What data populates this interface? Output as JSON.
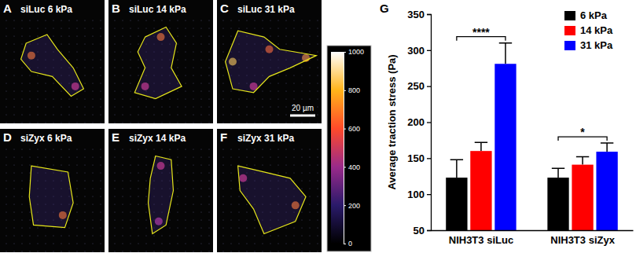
{
  "panels": [
    {
      "letter": "A",
      "title": "siLuc 6 kPa"
    },
    {
      "letter": "B",
      "title": "siLuc 14 kPa"
    },
    {
      "letter": "C",
      "title": "siLuc 31 kPa"
    },
    {
      "letter": "D",
      "title": "siZyx 6 kPa"
    },
    {
      "letter": "E",
      "title": "siZyx 14 kPa"
    },
    {
      "letter": "F",
      "title": "siZyx 31 kPa"
    }
  ],
  "scale_bar": "20 µm",
  "colorbar": {
    "range": [
      0,
      1000
    ],
    "ticks": [
      0,
      200,
      400,
      600,
      800,
      1000
    ]
  },
  "chart_data": {
    "type": "bar",
    "panel_letter": "G",
    "y_label": "Average traction stress (Pa)",
    "categories": [
      "NIH3T3 siLuc",
      "NIH3T3 siZyx"
    ],
    "series": [
      {
        "name": "6 kPa",
        "color": "#000000",
        "values": [
          123,
          123
        ],
        "errors": [
          25,
          13
        ]
      },
      {
        "name": "14 kPa",
        "color": "#ff0000",
        "values": [
          160,
          141
        ],
        "errors": [
          12,
          11
        ]
      },
      {
        "name": "31 kPa",
        "color": "#0000ff",
        "values": [
          281,
          159
        ],
        "errors": [
          29,
          12
        ]
      }
    ],
    "ylim": [
      50,
      350
    ],
    "yticks": [
      50,
      100,
      150,
      200,
      250,
      300,
      350
    ],
    "legend": "top-right",
    "annotations": [
      {
        "text": "****",
        "category": 0,
        "from_series": 0,
        "to_series": 2
      },
      {
        "text": "*",
        "category": 1,
        "from_series": 0,
        "to_series": 2
      }
    ]
  }
}
